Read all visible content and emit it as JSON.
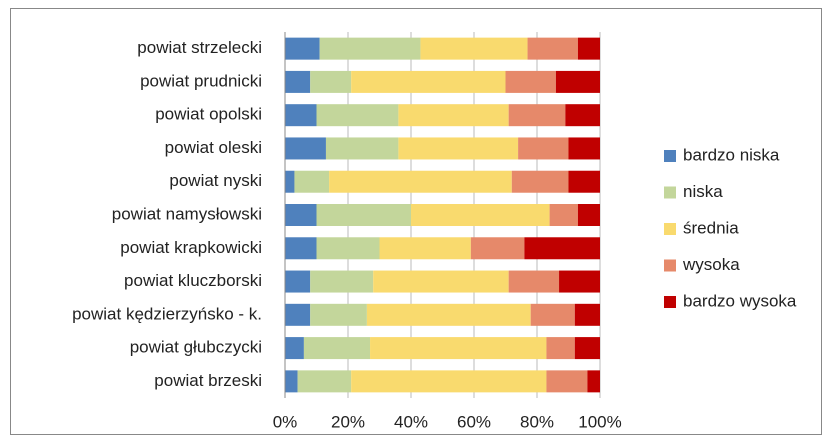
{
  "chart_data": {
    "type": "stacked_horizontal_bar",
    "categories": [
      "powiat strzelecki",
      "powiat prudnicki",
      "powiat opolski",
      "powiat oleski",
      "powiat nyski",
      "powiat namysłowski",
      "powiat krapkowicki",
      "powiat kluczborski",
      "powiat kędzierzyńsko - k.",
      "powiat głubczycki",
      "powiat brzeski"
    ],
    "series": [
      {
        "name": "bardzo niska",
        "color": "#4f81bd",
        "values": [
          11,
          8,
          10,
          13,
          3,
          10,
          10,
          8,
          8,
          6,
          4
        ]
      },
      {
        "name": "niska",
        "color": "#c3d69b",
        "values": [
          32,
          13,
          26,
          23,
          11,
          30,
          20,
          20,
          18,
          21,
          17
        ]
      },
      {
        "name": "średnia",
        "color": "#f9da6e",
        "values": [
          34,
          49,
          35,
          38,
          58,
          44,
          29,
          43,
          52,
          56,
          62
        ]
      },
      {
        "name": "wysoka",
        "color": "#e6896a",
        "values": [
          16,
          16,
          18,
          16,
          18,
          9,
          17,
          16,
          14,
          9,
          13
        ]
      },
      {
        "name": "bardzo wysoka",
        "color": "#c00000",
        "values": [
          7,
          14,
          11,
          10,
          10,
          7,
          24,
          13,
          8,
          8,
          4
        ]
      }
    ],
    "xlim": [
      0,
      100
    ],
    "xticks": [
      {
        "value": 0,
        "label": "0%"
      },
      {
        "value": 20,
        "label": "20%"
      },
      {
        "value": 40,
        "label": "40%"
      },
      {
        "value": 60,
        "label": "60%"
      },
      {
        "value": 80,
        "label": "80%"
      },
      {
        "value": 100,
        "label": "100%"
      }
    ],
    "grid": true,
    "legend": "right"
  }
}
